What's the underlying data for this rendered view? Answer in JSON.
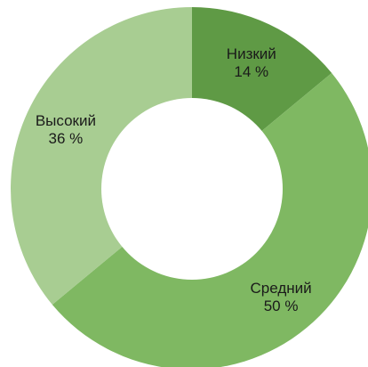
{
  "chart_data": {
    "type": "pie",
    "title": "",
    "donut": true,
    "unit": "%",
    "slices": [
      {
        "label": "Низкий",
        "value": 14,
        "value_label": "14 %",
        "color": "#5f9a45"
      },
      {
        "label": "Средний",
        "value": 50,
        "value_label": "50 %",
        "color": "#7fb862"
      },
      {
        "label": "Высокий",
        "value": 36,
        "value_label": "36 %",
        "color": "#a8cd92"
      }
    ]
  }
}
